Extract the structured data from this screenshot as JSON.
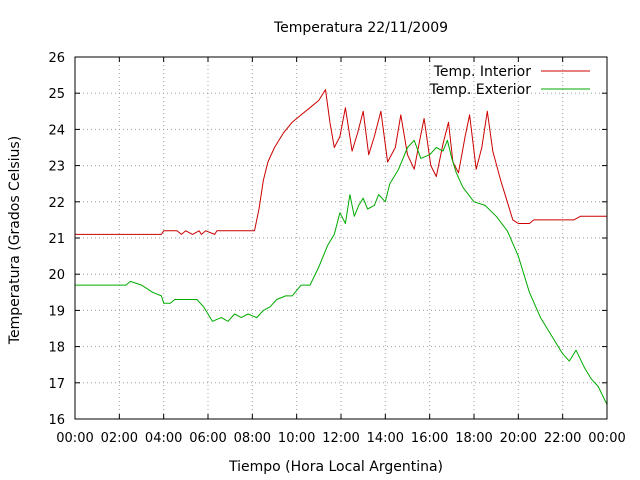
{
  "chart_data": {
    "type": "line",
    "title": "Temperatura 22/11/2009",
    "xlabel": "Tiempo (Hora Local Argentina)",
    "ylabel": "Temperatura (Grados Celsius)",
    "xlim": [
      0,
      24
    ],
    "ylim": [
      16,
      26
    ],
    "x_unit": "hours",
    "x_ticks": [
      0,
      2,
      4,
      6,
      8,
      10,
      12,
      14,
      16,
      18,
      20,
      22,
      24
    ],
    "x_tick_labels": [
      "00:00",
      "02:00",
      "04:00",
      "06:00",
      "08:00",
      "10:00",
      "12:00",
      "14:00",
      "16:00",
      "18:00",
      "20:00",
      "22:00",
      "00:00"
    ],
    "y_ticks": [
      16,
      17,
      18,
      19,
      20,
      21,
      22,
      23,
      24,
      25,
      26
    ],
    "y_tick_labels": [
      "16",
      "17",
      "18",
      "19",
      "20",
      "21",
      "22",
      "23",
      "24",
      "25",
      "26"
    ],
    "grid": true,
    "legend_position": "top-right",
    "series": [
      {
        "name": "Temp. Interior",
        "color": "#cc0000",
        "x": [
          0,
          2,
          3.9,
          4.0,
          4.6,
          4.8,
          5.0,
          5.3,
          5.6,
          5.7,
          5.9,
          6.3,
          6.4,
          7.0,
          8.1,
          8.3,
          8.5,
          8.7,
          9.0,
          9.4,
          9.8,
          10.2,
          10.6,
          11.0,
          11.3,
          11.5,
          11.7,
          11.95,
          12.2,
          12.5,
          12.75,
          13.0,
          13.25,
          13.5,
          13.8,
          14.1,
          14.45,
          14.7,
          15.0,
          15.3,
          15.55,
          15.75,
          16.05,
          16.3,
          16.6,
          16.85,
          17.05,
          17.3,
          17.6,
          17.8,
          18.1,
          18.35,
          18.6,
          18.85,
          19.2,
          19.5,
          19.75,
          20.0,
          20.3,
          20.5,
          20.7,
          21.0,
          21.5,
          21.7,
          22.0,
          22.5,
          22.8,
          23.2,
          24.0
        ],
        "values": [
          21.1,
          21.1,
          21.1,
          21.2,
          21.2,
          21.1,
          21.2,
          21.1,
          21.2,
          21.1,
          21.2,
          21.1,
          21.2,
          21.2,
          21.2,
          21.8,
          22.6,
          23.1,
          23.5,
          23.9,
          24.2,
          24.4,
          24.6,
          24.8,
          25.1,
          24.2,
          23.5,
          23.8,
          24.6,
          23.4,
          23.9,
          24.5,
          23.3,
          23.8,
          24.5,
          23.1,
          23.5,
          24.4,
          23.3,
          22.9,
          23.7,
          24.3,
          23.0,
          22.7,
          23.6,
          24.2,
          23.1,
          22.8,
          23.8,
          24.4,
          22.9,
          23.5,
          24.5,
          23.4,
          22.6,
          22.0,
          21.5,
          21.4,
          21.4,
          21.4,
          21.5,
          21.5,
          21.5,
          21.5,
          21.5,
          21.5,
          21.6,
          21.6,
          21.6
        ],
        "line_only": true
      },
      {
        "name": "Temp. Exterior",
        "color": "#00aa00",
        "x": [
          0,
          1.0,
          2.3,
          2.5,
          3.0,
          3.5,
          3.9,
          4.0,
          4.3,
          4.5,
          5.0,
          5.5,
          5.8,
          6.0,
          6.2,
          6.6,
          6.9,
          7.2,
          7.5,
          7.8,
          8.2,
          8.5,
          8.8,
          9.1,
          9.5,
          9.8,
          10.2,
          10.6,
          11.0,
          11.4,
          11.7,
          11.95,
          12.2,
          12.4,
          12.6,
          12.8,
          13.0,
          13.2,
          13.5,
          13.7,
          14.0,
          14.2,
          14.6,
          15.0,
          15.3,
          15.6,
          16.0,
          16.3,
          16.6,
          16.8,
          17.0,
          17.2,
          17.5,
          18.0,
          18.5,
          19.0,
          19.5,
          20.0,
          20.5,
          21.0,
          21.4,
          21.7,
          22.0,
          22.3,
          22.6,
          23.0,
          23.3,
          23.6,
          24.0
        ],
        "values": [
          19.7,
          19.7,
          19.7,
          19.8,
          19.7,
          19.5,
          19.4,
          19.2,
          19.2,
          19.3,
          19.3,
          19.3,
          19.1,
          18.9,
          18.7,
          18.8,
          18.7,
          18.9,
          18.8,
          18.9,
          18.8,
          19.0,
          19.1,
          19.3,
          19.4,
          19.4,
          19.7,
          19.7,
          20.2,
          20.8,
          21.1,
          21.7,
          21.4,
          22.2,
          21.6,
          21.9,
          22.1,
          21.8,
          21.9,
          22.2,
          22.0,
          22.5,
          22.9,
          23.5,
          23.7,
          23.2,
          23.3,
          23.5,
          23.4,
          23.7,
          23.2,
          22.8,
          22.4,
          22.0,
          21.9,
          21.6,
          21.2,
          20.5,
          19.5,
          18.8,
          18.4,
          18.1,
          17.8,
          17.6,
          17.9,
          17.4,
          17.1,
          16.9,
          16.4
        ],
        "line_only": true
      }
    ]
  }
}
